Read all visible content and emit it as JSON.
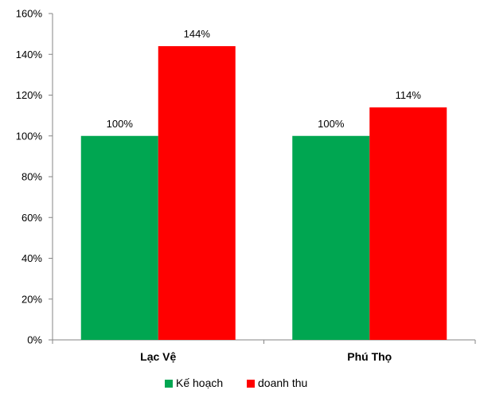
{
  "chart_data": {
    "type": "bar",
    "categories": [
      "Lạc Vệ",
      "Phú Thọ"
    ],
    "series": [
      {
        "name": "Kế hoạch",
        "values": [
          100,
          100
        ],
        "color": "#00a651",
        "labels": [
          "100%",
          "100%"
        ]
      },
      {
        "name": "doanh thu",
        "values": [
          144,
          114
        ],
        "color": "#ff0000",
        "labels": [
          "144%",
          "114%"
        ]
      }
    ],
    "y_ticks": [
      {
        "value": 0,
        "label": "0%"
      },
      {
        "value": 20,
        "label": "20%"
      },
      {
        "value": 40,
        "label": "40%"
      },
      {
        "value": 60,
        "label": "60%"
      },
      {
        "value": 80,
        "label": "80%"
      },
      {
        "value": 100,
        "label": "100%"
      },
      {
        "value": 120,
        "label": "120%"
      },
      {
        "value": 140,
        "label": "140%"
      },
      {
        "value": 160,
        "label": "160%"
      }
    ],
    "ylim": [
      0,
      160
    ],
    "title": "",
    "xlabel": "",
    "ylabel": "",
    "grid": false,
    "legend_position": "bottom"
  }
}
